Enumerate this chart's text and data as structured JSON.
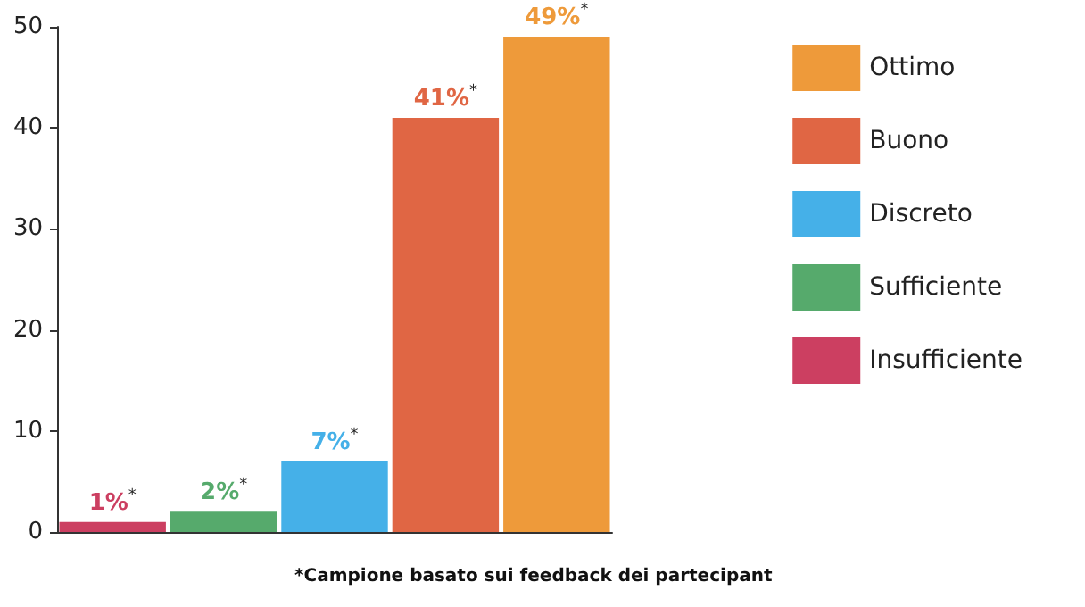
{
  "chart_data": {
    "type": "bar",
    "categories": [
      null,
      null,
      null,
      null,
      null
    ],
    "series": [
      {
        "name": "Ottimo",
        "color": "#ee9a3a",
        "values": [
          null,
          null,
          null,
          null,
          49
        ],
        "value_labels": [
          null,
          null,
          null,
          null,
          "49%$^{*}$"
        ]
      },
      {
        "name": "Buono",
        "color": "#e06644",
        "values": [
          null,
          null,
          null,
          41,
          null
        ],
        "value_labels": [
          null,
          null,
          null,
          "41%$^{*}$",
          null
        ]
      },
      {
        "name": "Discreto",
        "color": "#45b0e8",
        "values": [
          null,
          null,
          7,
          null,
          null
        ],
        "value_labels": [
          null,
          null,
          "7%$^{*}$",
          null,
          null
        ]
      },
      {
        "name": "Sufficiente",
        "color": "#56aa6c",
        "values": [
          null,
          2,
          null,
          null,
          null
        ],
        "value_labels": [
          null,
          "2%$^{*}$",
          null,
          null,
          null
        ]
      },
      {
        "name": "Insufficiente",
        "color": "#cc3f61",
        "values": [
          1,
          null,
          null,
          null,
          null
        ],
        "value_labels": [
          "1%$^{*}$",
          null,
          null,
          null,
          null
        ]
      }
    ],
    "ylim": [
      0,
      50
    ],
    "yticks": [
      0,
      10,
      20,
      30,
      40,
      50
    ],
    "grid": false,
    "legend": "right",
    "annotations": [
      "*Campione basato sui feedback dei partecipant"
    ]
  }
}
